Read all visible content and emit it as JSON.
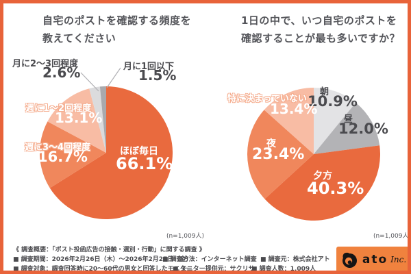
{
  "page": {
    "frame_border_color": "#E8633A",
    "background_color": "#FFFFFF"
  },
  "chart_data": [
    {
      "type": "pie",
      "title": "自宅のポストを確認する頻度を教えてください",
      "title_lines": [
        "自宅のポストを確認する頻度を",
        "教えてください"
      ],
      "labels": [
        "ほぼ毎日",
        "週に3〜4回程度",
        "週に1〜2回程度",
        "月に2〜3回程度",
        "月に1回以下"
      ],
      "values": [
        66.1,
        16.7,
        13.1,
        2.6,
        1.5
      ],
      "value_labels": [
        "66.1%",
        "16.7%",
        "13.1%",
        "2.6%",
        "1.5%"
      ],
      "colors": [
        "#E96A3E",
        "#F0875C",
        "#F8BCA4",
        "#DBDBDD",
        "#A9A9AD"
      ],
      "start_angle_deg": 0,
      "direction": "clockwise",
      "legend": "none",
      "sample_label": "(n=1,009人)"
    },
    {
      "type": "pie",
      "title": "1日の中で、いつ自宅のポストを確認することが最も多いですか？",
      "title_lines": [
        "1日の中で、いつ自宅のポストを",
        "確認することが最も多いですか？"
      ],
      "labels": [
        "朝",
        "昼",
        "夕方",
        "夜",
        "特に決まっていない"
      ],
      "values": [
        10.9,
        12.0,
        40.3,
        23.4,
        13.4
      ],
      "value_labels": [
        "10.9%",
        "12.0%",
        "40.3%",
        "23.4%",
        "13.4%"
      ],
      "colors": [
        "#E3E3E5",
        "#B3B3B6",
        "#E96A3E",
        "#F0875C",
        "#F8BCA4"
      ],
      "start_angle_deg": 0,
      "direction": "clockwise",
      "legend": "none",
      "sample_label": "(n=1,009人)"
    }
  ],
  "footer": {
    "summary": "《 調査概要：「ポスト投函広告の接触・選別・行動」に関する調査 》",
    "row1": [
      "■ 調査期間：2026年2月26日（木）〜2026年2月27日（金）",
      "■ 調査方法：インターネット調査",
      "■ 調査元：株式会社アト"
    ],
    "row2": [
      "■ 調査対象：調査回答時に20〜60代の男女と回答したモニター",
      "■ モニター提供元：サクリサ",
      "■ 調査人数：1,009人"
    ]
  },
  "logo": {
    "brand": "ato",
    "suffix": "Inc.",
    "background_color": "#F0823E"
  }
}
